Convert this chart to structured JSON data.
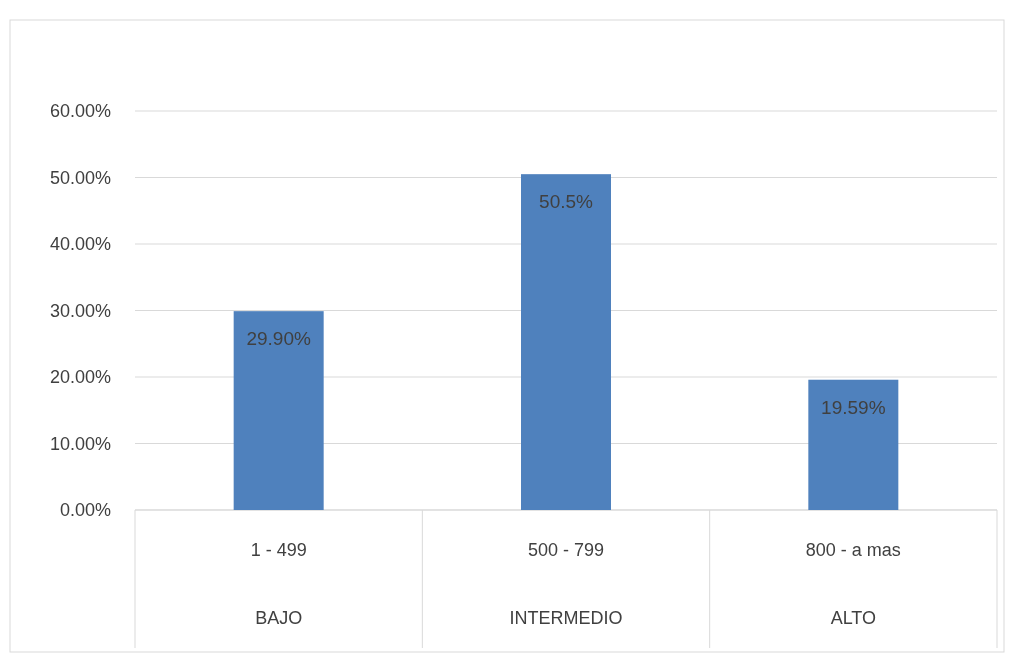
{
  "chart_data": {
    "type": "bar",
    "categories": [
      "1 - 499",
      "500 - 799",
      "800 -  a mas"
    ],
    "values": [
      29.9,
      50.5,
      19.59
    ],
    "color": "#4f81bd",
    "value_labels": [
      "29.90%",
      "50.5%",
      "19.59%"
    ],
    "ylim": [
      0,
      60
    ],
    "yticks": [
      {
        "value": 0,
        "label": "0.00%"
      },
      {
        "value": 10,
        "label": "10.00%"
      },
      {
        "value": 20,
        "label": "20.00%"
      },
      {
        "value": 30,
        "label": "30.00%"
      },
      {
        "value": 40,
        "label": "40.00%"
      },
      {
        "value": 50,
        "label": "50.00%"
      },
      {
        "value": 60,
        "label": "60.00%"
      }
    ],
    "grid": "y",
    "annotations": [
      "BAJO",
      "INTERMEDIO",
      "ALTO"
    ]
  }
}
